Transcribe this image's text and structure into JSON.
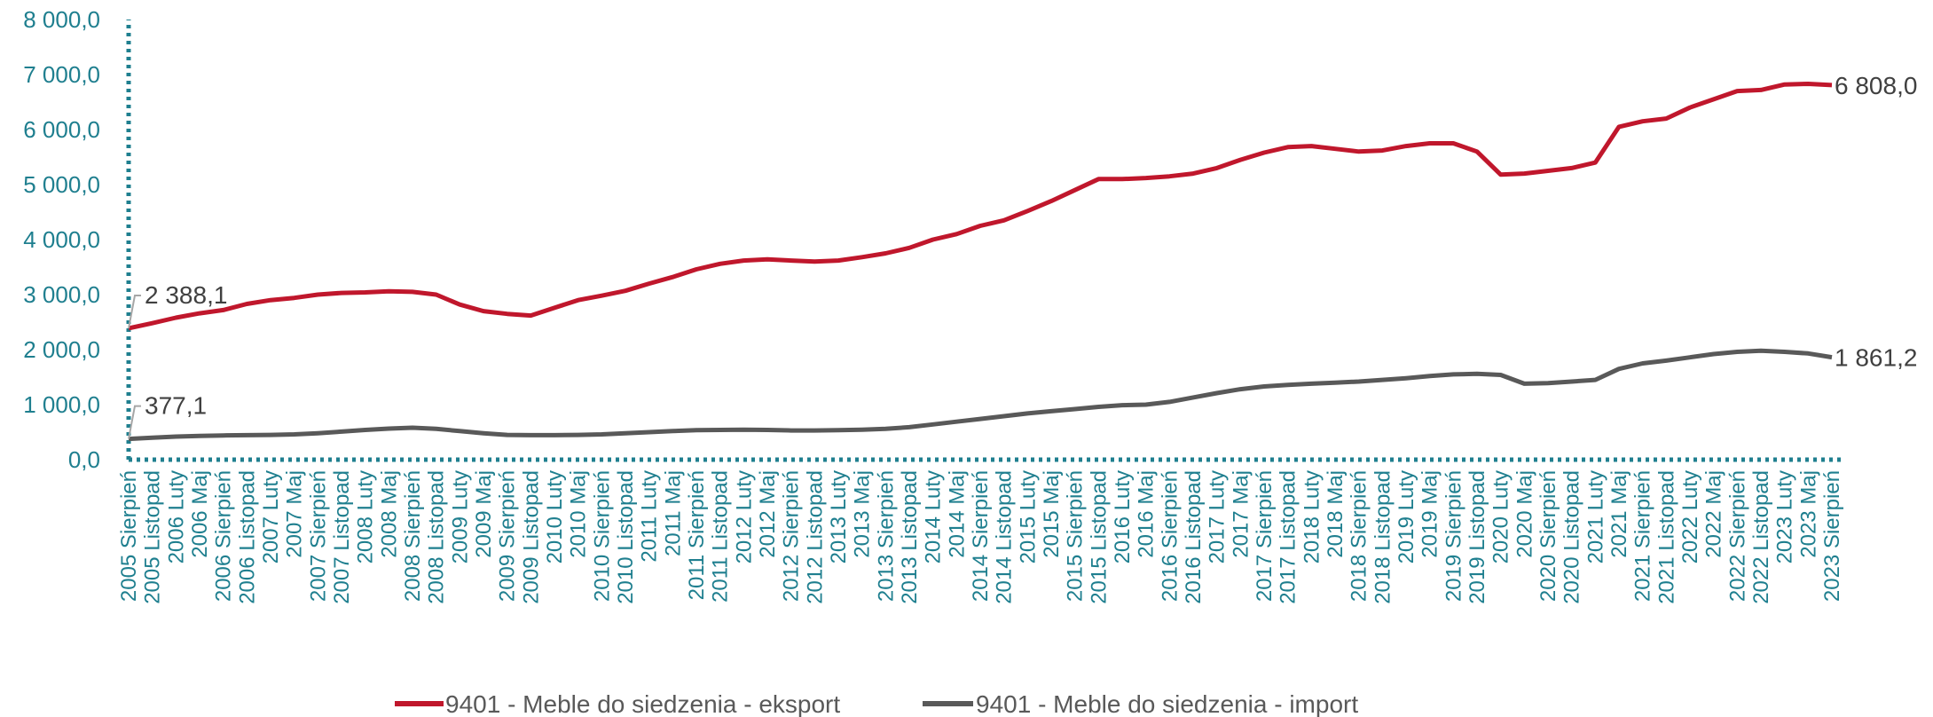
{
  "chart_data": {
    "type": "line",
    "title": "",
    "xlabel": "",
    "ylabel": "",
    "ylim": [
      0,
      8000
    ],
    "yticks": [
      "0,0",
      "1 000,0",
      "2 000,0",
      "3 000,0",
      "4 000,0",
      "5 000,0",
      "6 000,0",
      "7 000,0",
      "8 000,0"
    ],
    "grid": false,
    "legend_position": "bottom",
    "categories": [
      "2005 Sierpień",
      "2005 Listopad",
      "2006 Luty",
      "2006 Maj",
      "2006 Sierpień",
      "2006 Listopad",
      "2007 Luty",
      "2007 Maj",
      "2007 Sierpień",
      "2007 Listopad",
      "2008 Luty",
      "2008 Maj",
      "2008 Sierpień",
      "2008 Listopad",
      "2009 Luty",
      "2009 Maj",
      "2009 Sierpień",
      "2009 Listopad",
      "2010 Luty",
      "2010 Maj",
      "2010 Sierpień",
      "2010 Listopad",
      "2011 Luty",
      "2011 Maj",
      "2011 Sierpień",
      "2011 Listopad",
      "2012 Luty",
      "2012 Maj",
      "2012 Sierpień",
      "2012 Listopad",
      "2013 Luty",
      "2013 Maj",
      "2013 Sierpień",
      "2013 Listopad",
      "2014 Luty",
      "2014 Maj",
      "2014 Sierpień",
      "2014 Listopad",
      "2015 Luty",
      "2015 Maj",
      "2015 Sierpień",
      "2015 Listopad",
      "2016 Luty",
      "2016 Maj",
      "2016 Sierpień",
      "2016 Listopad",
      "2017 Luty",
      "2017 Maj",
      "2017 Sierpień",
      "2017 Listopad",
      "2018 Luty",
      "2018 Maj",
      "2018 Sierpień",
      "2018 Listopad",
      "2019 Luty",
      "2019 Maj",
      "2019 Sierpień",
      "2019 Listopad",
      "2020 Luty",
      "2020 Maj",
      "2020 Sierpień",
      "2020 Listopad",
      "2021 Luty",
      "2021 Maj",
      "2021 Sierpień",
      "2021 Listopad",
      "2022 Luty",
      "2022 Maj",
      "2022 Sierpień",
      "2022 Listopad",
      "2023 Luty",
      "2023 Maj",
      "2023 Sierpień"
    ],
    "series": [
      {
        "name": "9401 - Meble do siedzenia - eksport",
        "color": "#c0172c",
        "values": [
          2388.1,
          2480,
          2580,
          2660,
          2720,
          2830,
          2900,
          2940,
          3000,
          3030,
          3040,
          3060,
          3050,
          3000,
          2820,
          2700,
          2650,
          2620,
          2760,
          2900,
          2980,
          3070,
          3200,
          3320,
          3460,
          3560,
          3620,
          3640,
          3620,
          3600,
          3620,
          3680,
          3750,
          3850,
          4000,
          4100,
          4250,
          4350,
          4520,
          4700,
          4900,
          5100,
          5100,
          5120,
          5150,
          5200,
          5300,
          5450,
          5580,
          5680,
          5700,
          5650,
          5600,
          5620,
          5700,
          5750,
          5750,
          5600,
          5180,
          5200,
          5250,
          5300,
          5400,
          6050,
          6150,
          6200,
          6400,
          6550,
          6700,
          6720,
          6820,
          6830,
          6808.0
        ],
        "first_label": "2 388,1",
        "last_label": "6 808,0"
      },
      {
        "name": "9401 - Meble do siedzenia - import",
        "color": "#595959",
        "values": [
          377.1,
          400,
          420,
          430,
          440,
          445,
          450,
          460,
          480,
          510,
          540,
          565,
          580,
          560,
          520,
          480,
          450,
          445,
          445,
          450,
          460,
          480,
          500,
          520,
          535,
          540,
          545,
          540,
          530,
          530,
          535,
          545,
          560,
          590,
          640,
          690,
          740,
          790,
          840,
          880,
          920,
          960,
          990,
          1000,
          1050,
          1130,
          1210,
          1280,
          1330,
          1360,
          1380,
          1400,
          1420,
          1450,
          1480,
          1520,
          1550,
          1560,
          1540,
          1380,
          1390,
          1420,
          1450,
          1650,
          1750,
          1800,
          1860,
          1920,
          1960,
          1980,
          1960,
          1930,
          1861.2
        ],
        "first_label": "377,1",
        "last_label": "1 861,2"
      }
    ]
  }
}
